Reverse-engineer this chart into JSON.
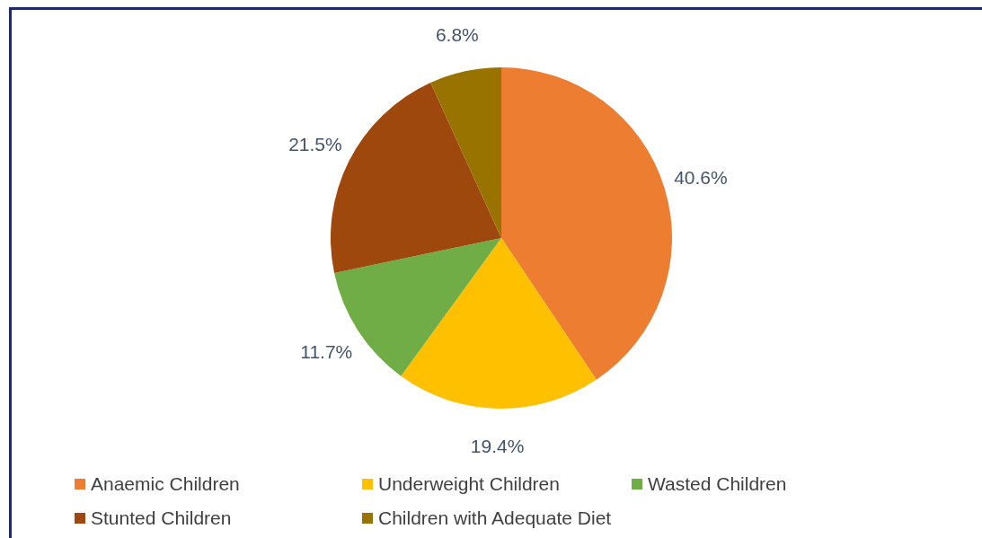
{
  "chart_data": {
    "type": "pie",
    "categories": [
      "Anaemic Children",
      "Underweight Children",
      "Wasted Children",
      "Stunted Children",
      "Children with Adequate Diet"
    ],
    "values": [
      40.6,
      19.4,
      11.7,
      21.5,
      6.8
    ],
    "value_labels": [
      "40.6%",
      "19.4%",
      "11.7%",
      "21.5%",
      "6.8%"
    ],
    "colors": [
      "#ed7d31",
      "#ffc000",
      "#70ad47",
      "#9e480e",
      "#997300"
    ],
    "legend": "bottom"
  }
}
